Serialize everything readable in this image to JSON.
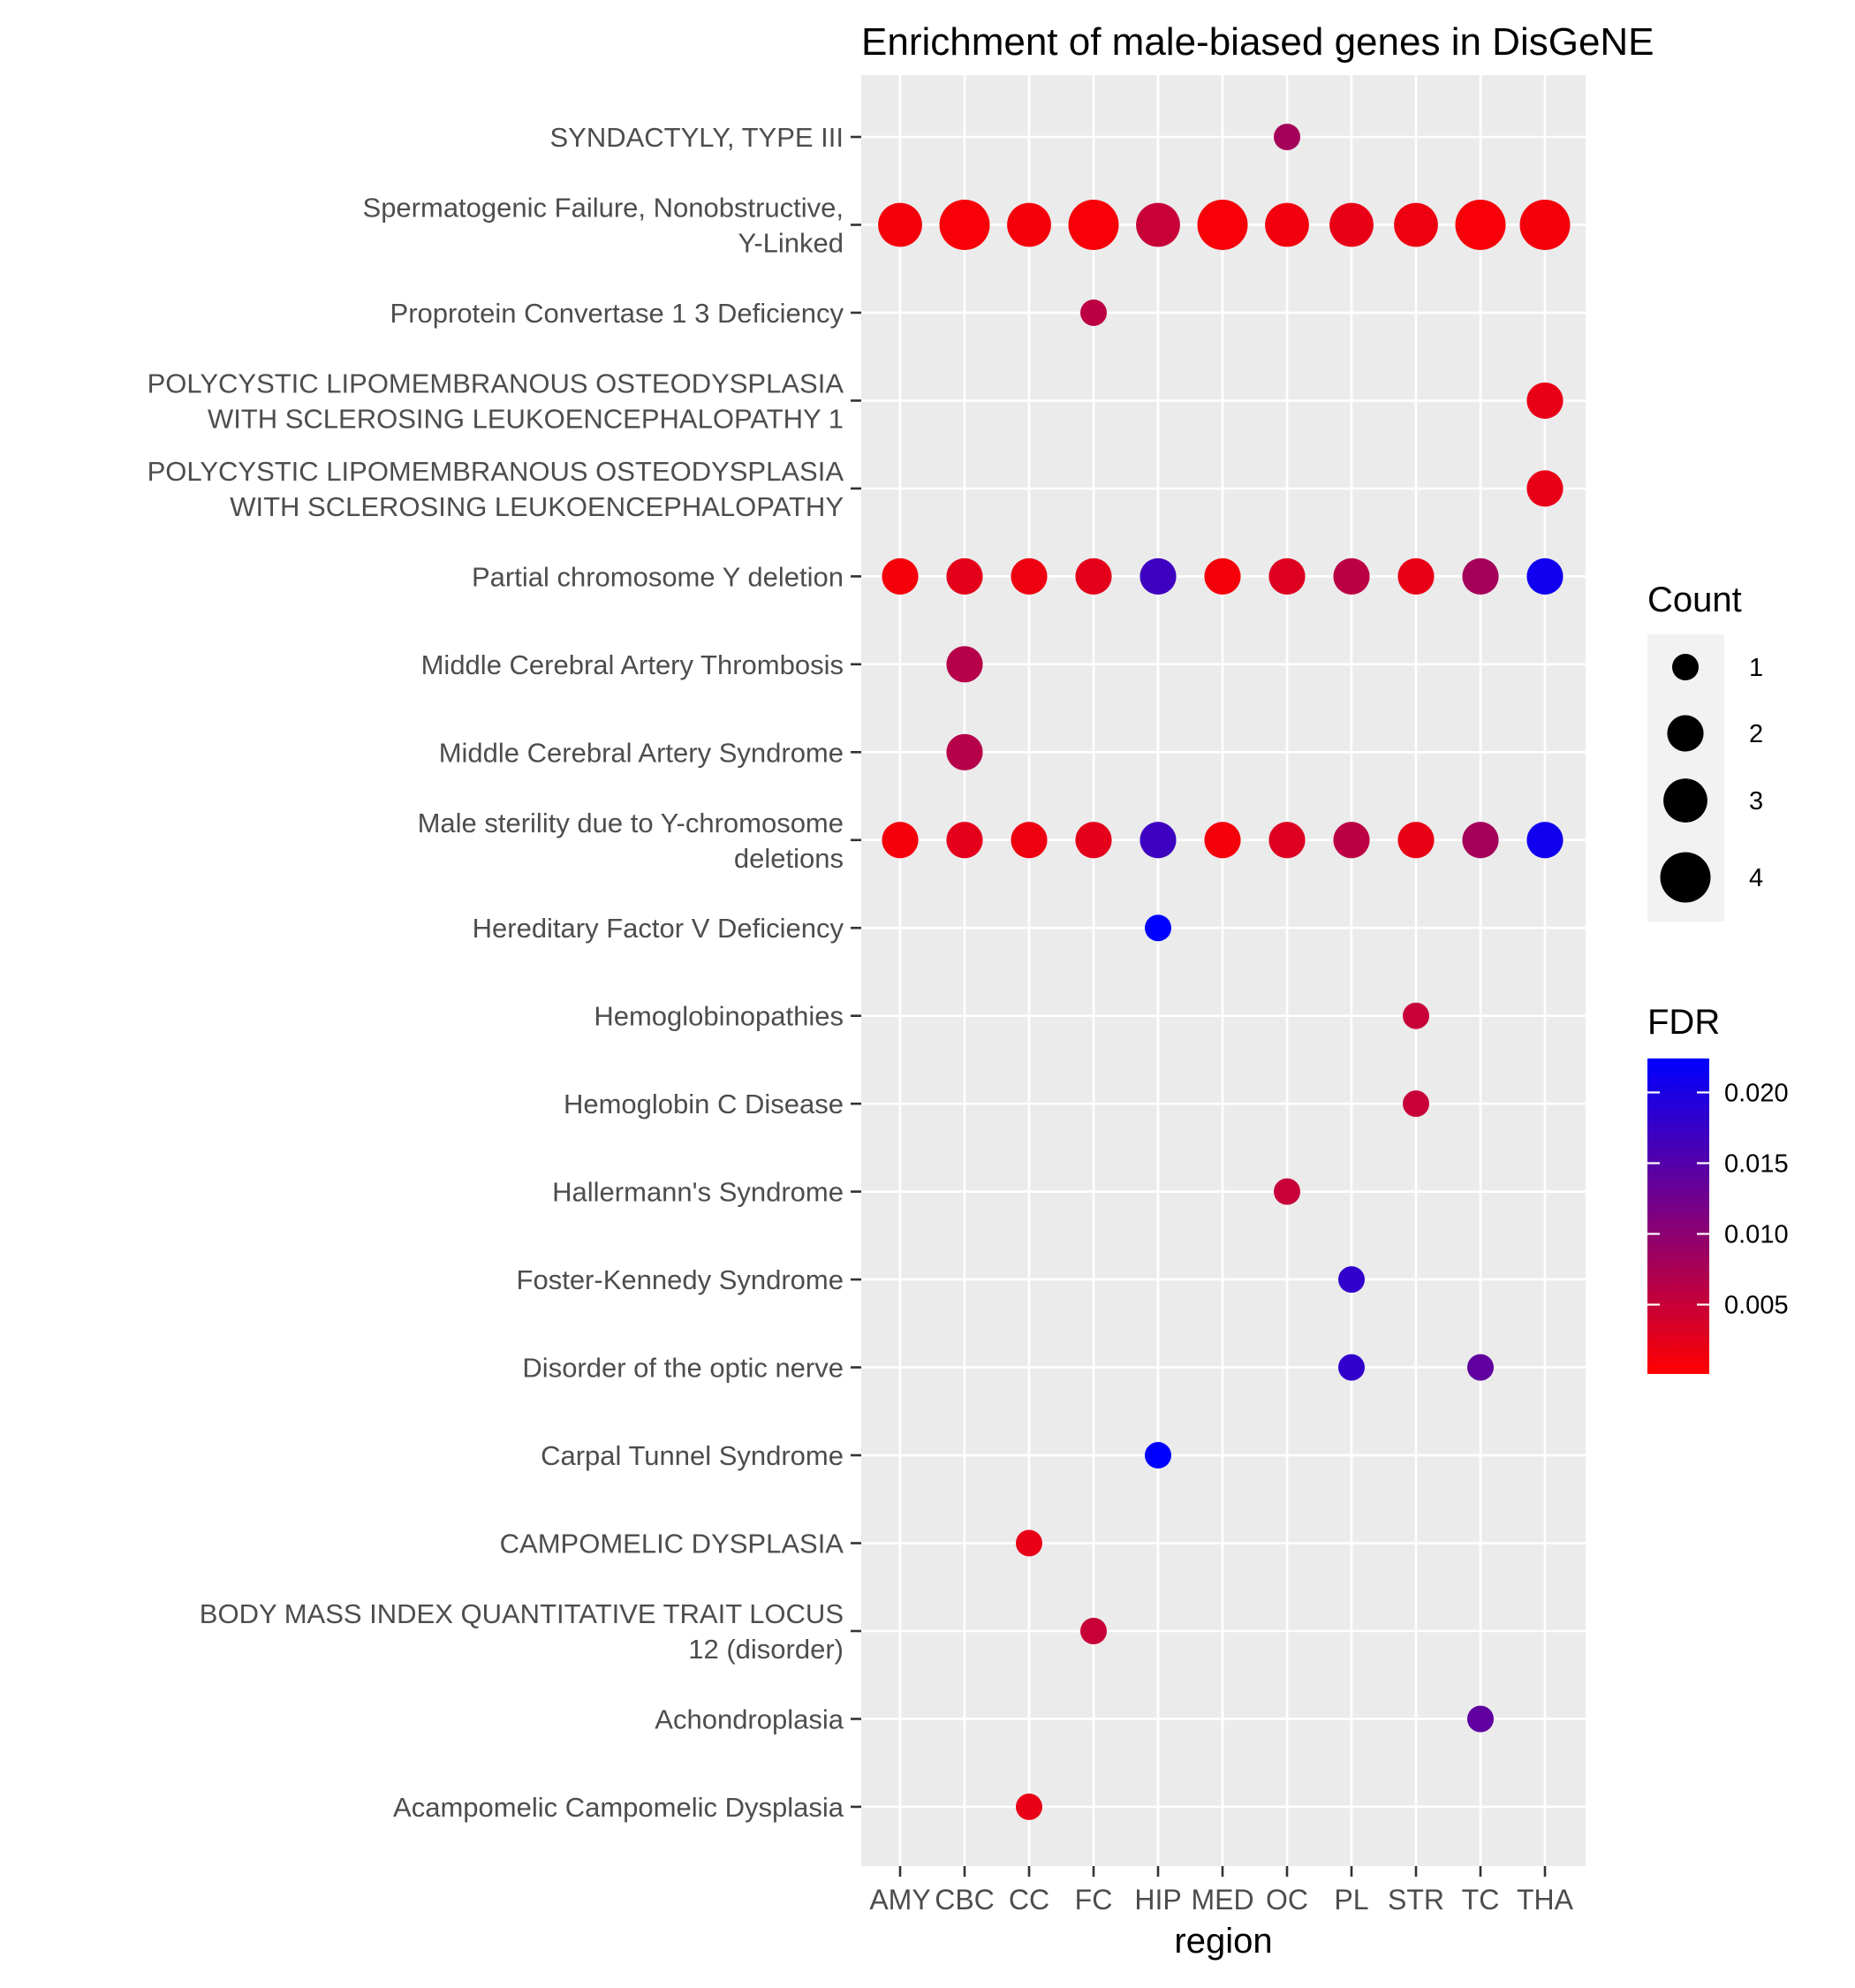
{
  "chart_data": {
    "type": "scatter",
    "title": "Enrichment of male-biased genes in DisGeNE",
    "xlabel": "region",
    "ylabel": "",
    "x_categories": [
      "AMY",
      "CBC",
      "CC",
      "FC",
      "HIP",
      "MED",
      "OC",
      "PL",
      "STR",
      "TC",
      "THA"
    ],
    "y_categories": [
      "SYNDACTYLY, TYPE III",
      "Spermatogenic Failure, Nonobstructive,\nY-Linked",
      "Proprotein Convertase 1 3 Deficiency",
      "POLYCYSTIC LIPOMEMBRANOUS OSTEODYSPLASIA\nWITH SCLEROSING LEUKOENCEPHALOPATHY 1",
      "POLYCYSTIC LIPOMEMBRANOUS OSTEODYSPLASIA\nWITH SCLEROSING LEUKOENCEPHALOPATHY",
      "Partial chromosome Y deletion",
      "Middle Cerebral Artery Thrombosis",
      "Middle Cerebral Artery Syndrome",
      "Male sterility due to Y-chromosome\ndeletions",
      "Hereditary Factor V Deficiency",
      "Hemoglobinopathies",
      "Hemoglobin C Disease",
      "Hallermann's Syndrome",
      "Foster-Kennedy Syndrome",
      "Disorder of the optic nerve",
      "Carpal Tunnel Syndrome",
      "CAMPOMELIC DYSPLASIA",
      "BODY MASS INDEX QUANTITATIVE TRAIT LOCUS\n12 (disorder)",
      "Achondroplasia",
      "Acampomelic Campomelic Dysplasia"
    ],
    "size_legend": {
      "title": "Count",
      "breaks": [
        1,
        2,
        3,
        4
      ]
    },
    "color_legend": {
      "title": "FDR",
      "breaks": [
        0.005,
        0.01,
        0.015,
        0.02
      ],
      "break_labels": [
        "0.005",
        "0.010",
        "0.015",
        "0.020"
      ],
      "range": [
        0.0001,
        0.0224
      ],
      "low_color": "#ff0000",
      "high_color": "#0000ff"
    },
    "points": [
      {
        "disease": 0,
        "region": "OC",
        "count": 1,
        "fdr": 0.008
      },
      {
        "disease": 1,
        "region": "AMY",
        "count": 3,
        "fdr": 0.001
      },
      {
        "disease": 1,
        "region": "CBC",
        "count": 4,
        "fdr": 0.0008
      },
      {
        "disease": 1,
        "region": "CC",
        "count": 3,
        "fdr": 0.001
      },
      {
        "disease": 1,
        "region": "FC",
        "count": 4,
        "fdr": 0.0008
      },
      {
        "disease": 1,
        "region": "HIP",
        "count": 3,
        "fdr": 0.005
      },
      {
        "disease": 1,
        "region": "MED",
        "count": 4,
        "fdr": 0.0008
      },
      {
        "disease": 1,
        "region": "OC",
        "count": 3,
        "fdr": 0.0012
      },
      {
        "disease": 1,
        "region": "PL",
        "count": 3,
        "fdr": 0.002
      },
      {
        "disease": 1,
        "region": "STR",
        "count": 3,
        "fdr": 0.0015
      },
      {
        "disease": 1,
        "region": "TC",
        "count": 4,
        "fdr": 0.0008
      },
      {
        "disease": 1,
        "region": "THA",
        "count": 4,
        "fdr": 0.001
      },
      {
        "disease": 2,
        "region": "FC",
        "count": 1,
        "fdr": 0.006
      },
      {
        "disease": 3,
        "region": "THA",
        "count": 2,
        "fdr": 0.002
      },
      {
        "disease": 4,
        "region": "THA",
        "count": 2,
        "fdr": 0.002
      },
      {
        "disease": 5,
        "region": "AMY",
        "count": 2,
        "fdr": 0.001
      },
      {
        "disease": 5,
        "region": "CBC",
        "count": 2,
        "fdr": 0.0025
      },
      {
        "disease": 5,
        "region": "CC",
        "count": 2,
        "fdr": 0.0015
      },
      {
        "disease": 5,
        "region": "FC",
        "count": 2,
        "fdr": 0.0025
      },
      {
        "disease": 5,
        "region": "HIP",
        "count": 2,
        "fdr": 0.017
      },
      {
        "disease": 5,
        "region": "MED",
        "count": 2,
        "fdr": 0.001
      },
      {
        "disease": 5,
        "region": "OC",
        "count": 2,
        "fdr": 0.003
      },
      {
        "disease": 5,
        "region": "PL",
        "count": 2,
        "fdr": 0.006
      },
      {
        "disease": 5,
        "region": "STR",
        "count": 2,
        "fdr": 0.002
      },
      {
        "disease": 5,
        "region": "TC",
        "count": 2,
        "fdr": 0.008
      },
      {
        "disease": 5,
        "region": "THA",
        "count": 2,
        "fdr": 0.021
      },
      {
        "disease": 6,
        "region": "CBC",
        "count": 2,
        "fdr": 0.0065
      },
      {
        "disease": 7,
        "region": "CBC",
        "count": 2,
        "fdr": 0.0065
      },
      {
        "disease": 8,
        "region": "AMY",
        "count": 2,
        "fdr": 0.001
      },
      {
        "disease": 8,
        "region": "CBC",
        "count": 2,
        "fdr": 0.0025
      },
      {
        "disease": 8,
        "region": "CC",
        "count": 2,
        "fdr": 0.0015
      },
      {
        "disease": 8,
        "region": "FC",
        "count": 2,
        "fdr": 0.0025
      },
      {
        "disease": 8,
        "region": "HIP",
        "count": 2,
        "fdr": 0.017
      },
      {
        "disease": 8,
        "region": "MED",
        "count": 2,
        "fdr": 0.001
      },
      {
        "disease": 8,
        "region": "OC",
        "count": 2,
        "fdr": 0.003
      },
      {
        "disease": 8,
        "region": "PL",
        "count": 2,
        "fdr": 0.006
      },
      {
        "disease": 8,
        "region": "STR",
        "count": 2,
        "fdr": 0.002
      },
      {
        "disease": 8,
        "region": "TC",
        "count": 2,
        "fdr": 0.008
      },
      {
        "disease": 8,
        "region": "THA",
        "count": 2,
        "fdr": 0.021
      },
      {
        "disease": 9,
        "region": "HIP",
        "count": 1,
        "fdr": 0.0224
      },
      {
        "disease": 10,
        "region": "STR",
        "count": 1,
        "fdr": 0.005
      },
      {
        "disease": 11,
        "region": "STR",
        "count": 1,
        "fdr": 0.005
      },
      {
        "disease": 12,
        "region": "OC",
        "count": 1,
        "fdr": 0.005
      },
      {
        "disease": 13,
        "region": "PL",
        "count": 1,
        "fdr": 0.018
      },
      {
        "disease": 14,
        "region": "PL",
        "count": 1,
        "fdr": 0.018
      },
      {
        "disease": 14,
        "region": "TC",
        "count": 1,
        "fdr": 0.014
      },
      {
        "disease": 15,
        "region": "HIP",
        "count": 1,
        "fdr": 0.0224
      },
      {
        "disease": 16,
        "region": "CC",
        "count": 1,
        "fdr": 0.002
      },
      {
        "disease": 17,
        "region": "FC",
        "count": 1,
        "fdr": 0.005
      },
      {
        "disease": 18,
        "region": "TC",
        "count": 1,
        "fdr": 0.014
      },
      {
        "disease": 19,
        "region": "CC",
        "count": 1,
        "fdr": 0.002
      }
    ]
  }
}
